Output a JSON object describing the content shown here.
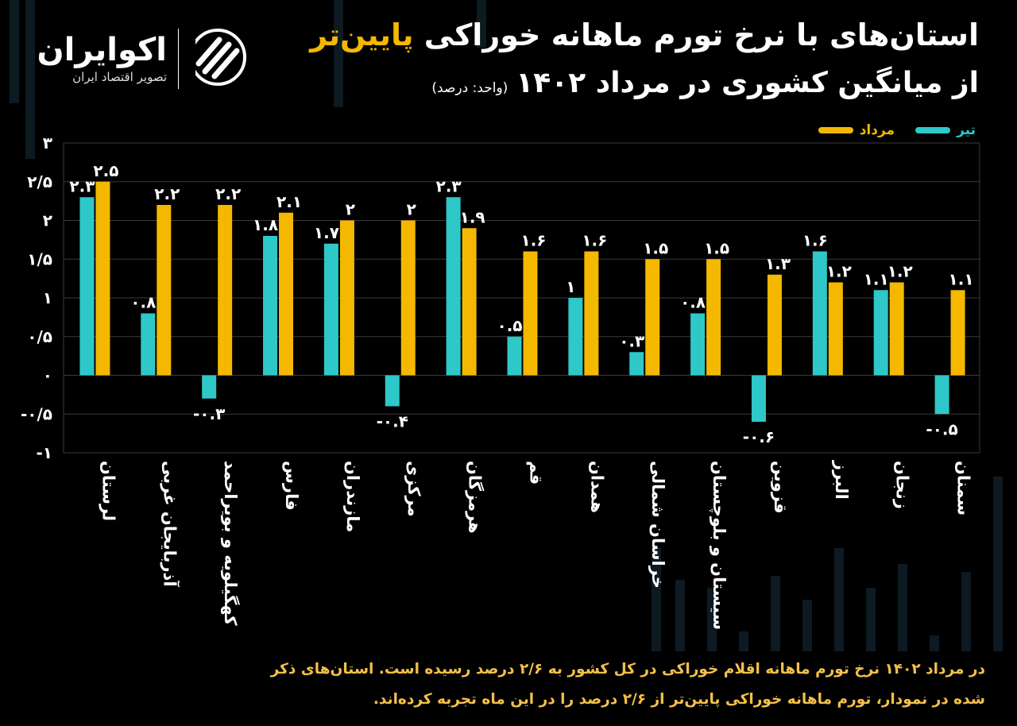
{
  "brand": {
    "name": "اکوایران",
    "tagline": "تصویر اقتصاد ایران"
  },
  "title": {
    "line1_part1": "استان‌های با نرخ تورم ماهانه خوراکی ",
    "line1_highlight": "پایین‌تر",
    "line2_main": "از میانگین کشوری در مرداد ۱۴۰۲",
    "line2_unit": "(واحد: درصد)"
  },
  "legend": {
    "tir": "تیر",
    "mordad": "مرداد"
  },
  "colors": {
    "background": "#000000",
    "tir": "#2ec8c8",
    "mordad": "#f5b800",
    "grid": "#3a3a3a",
    "text": "#ffffff",
    "footer": "#f5c04a"
  },
  "chart_data": {
    "type": "bar",
    "categories": [
      "لرستان",
      "آذربایجان غربی",
      "کهگیلویه و بویراحمد",
      "فارس",
      "مازندران",
      "مرکزی",
      "هرمزگان",
      "قم",
      "همدان",
      "خراسان شمالی",
      "سیستان و بلوچستان",
      "قزوین",
      "البرز",
      "زنجان",
      "سمنان"
    ],
    "series": [
      {
        "name": "تیر",
        "values": [
          2.3,
          0.8,
          -0.3,
          1.8,
          1.7,
          -0.4,
          2.3,
          0.5,
          1,
          0.3,
          0.8,
          -0.6,
          1.6,
          1.1,
          -0.5
        ]
      },
      {
        "name": "مرداد",
        "values": [
          2.5,
          2.2,
          2.2,
          2.1,
          2,
          2,
          1.9,
          1.6,
          1.6,
          1.5,
          1.5,
          1.3,
          1.2,
          1.2,
          1.1
        ]
      }
    ],
    "tir_labels": [
      "۲.۳",
      "۰.۸",
      "-۰.۳",
      "۱.۸",
      "۱.۷",
      "-۰.۴",
      "۲.۳",
      "۰.۵",
      "۱",
      "۰.۳",
      "۰.۸",
      "-۰.۶",
      "۱.۶",
      "۱.۱",
      "-۰.۵"
    ],
    "mordad_labels": [
      "۲.۵",
      "۲.۲",
      "۲.۲",
      "۲.۱",
      "۲",
      "۲",
      "۱.۹",
      "۱.۶",
      "۱.۶",
      "۱.۵",
      "۱.۵",
      "۱.۳",
      "۱.۲",
      "۱.۲",
      "۱.۱"
    ],
    "ylim": [
      -1,
      3
    ],
    "yticks": [
      3,
      2.5,
      2,
      1.5,
      1,
      0.5,
      0,
      -0.5,
      -1
    ],
    "ytick_labels": [
      "۳",
      "۲/۵",
      "۲",
      "۱/۵",
      "۱",
      "۰/۵",
      "۰",
      "-۰/۵",
      "-۱"
    ],
    "grid": true,
    "legend_position": "top-right"
  },
  "footer": {
    "line1": "در مرداد ۱۴۰۲ نرخ تورم ماهانه اقلام خوراکی در کل کشور به ۲/۶ درصد رسیده است. استان‌های ذکر",
    "line2": "شده در نمودار، تورم ماهانه خوراکی پایین‌تر از ۲/۶ درصد را در این ماه تجربه کرده‌اند."
  }
}
